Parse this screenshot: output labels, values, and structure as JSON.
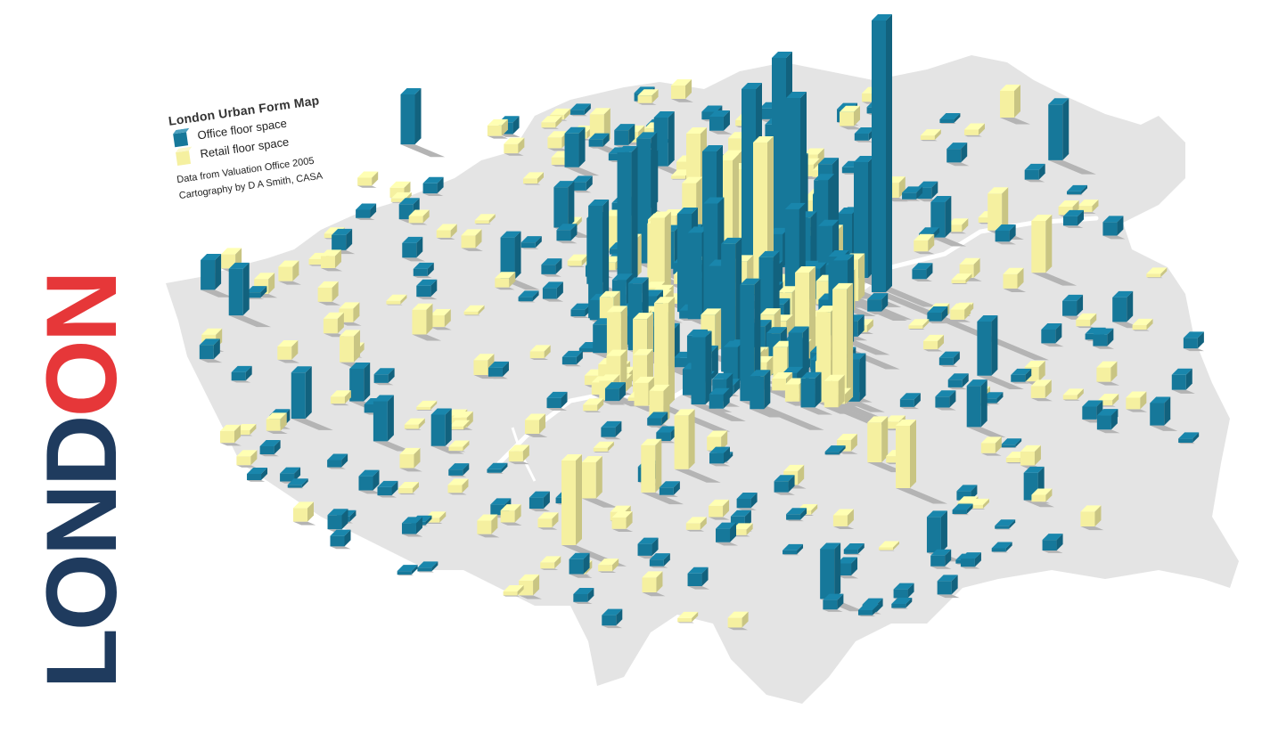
{
  "legend": {
    "title": "London Urban Form Map",
    "items": [
      {
        "label": "Office floor space",
        "color": "#16789a"
      },
      {
        "label": "Retail floor space",
        "color": "#f5f0a0"
      }
    ],
    "credits": [
      "Data from Valuation Office 2005",
      "Cartography by D A Smith, CASA"
    ]
  },
  "brand": {
    "parts": [
      {
        "text": "LON",
        "color": "#1f3b5e"
      },
      {
        "text": "D",
        "color": "#1f3b5e"
      },
      {
        "text": "ON",
        "color": "#e63739"
      }
    ]
  },
  "colors": {
    "land": "#e4e4e4",
    "river": "#ffffff",
    "office": "#16789a",
    "retail": "#f5f0a0",
    "shadow": "#b4b4b4"
  }
}
